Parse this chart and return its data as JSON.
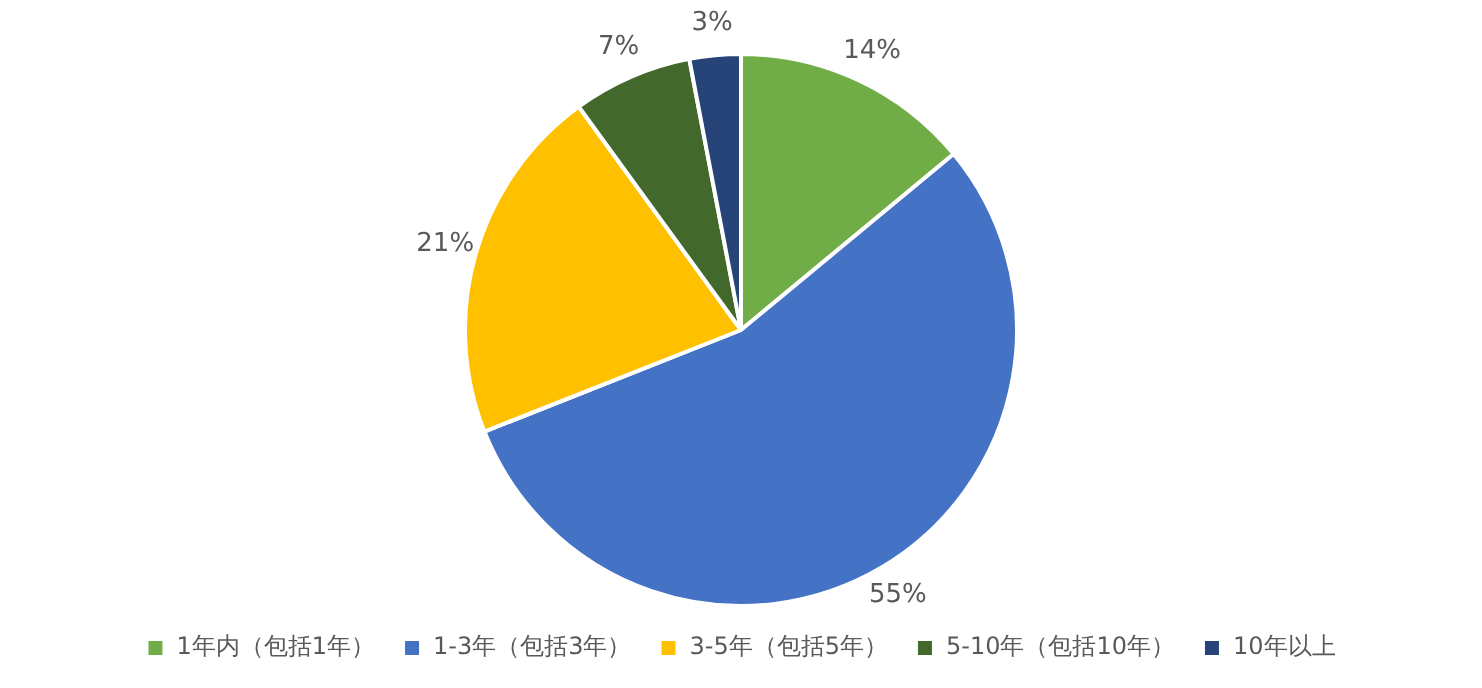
{
  "chart_data": {
    "type": "pie",
    "categories": [
      "1年内（包括1年）",
      "1-3年（包括3年）",
      "3-5年（包括5年）",
      "5-10年（包括10年）",
      "10年以上"
    ],
    "values": [
      14,
      55,
      21,
      7,
      3
    ],
    "colors": [
      "#70ad47",
      "#4472c4",
      "#ffc000",
      "#43682b",
      "#264478"
    ],
    "value_labels": [
      "14%",
      "55%",
      "21%",
      "7%",
      "3%"
    ],
    "legend": "bottom"
  }
}
